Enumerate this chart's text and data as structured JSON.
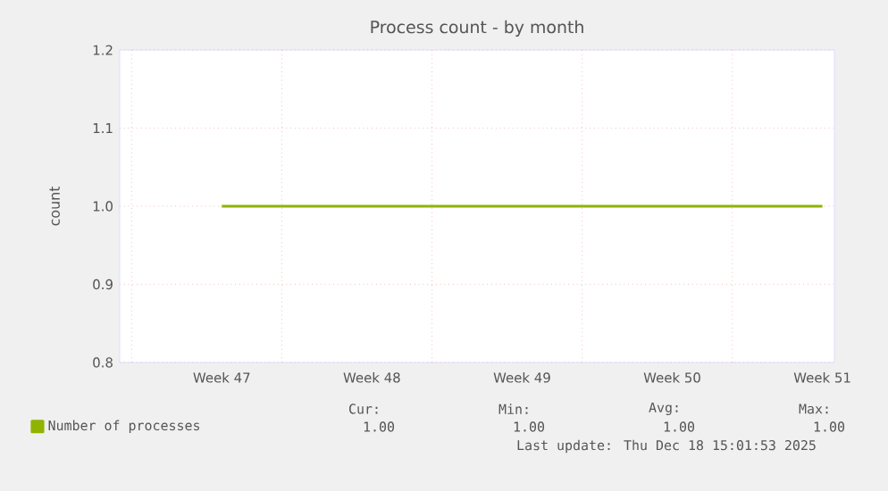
{
  "chart_data": {
    "type": "line",
    "title": "Process count - by month",
    "ylabel": "count",
    "categories": [
      "Week 47",
      "Week 48",
      "Week 49",
      "Week 50",
      "Week 51"
    ],
    "ylim": [
      0.8,
      1.2
    ],
    "yticks": [
      {
        "value": 0.8,
        "label": "0.8"
      },
      {
        "value": 0.9,
        "label": "0.9"
      },
      {
        "value": 1.0,
        "label": "1.0"
      },
      {
        "value": 1.1,
        "label": "1.1"
      },
      {
        "value": 1.2,
        "label": "1.2"
      }
    ],
    "grid": true,
    "legend": "bottom",
    "series": [
      {
        "name": "Number of processes",
        "color": "#8fb300",
        "values": [
          1.0,
          1.0,
          1.0,
          1.0,
          1.0
        ]
      }
    ],
    "annotations": [
      "Cur:",
      "Min:",
      "Avg:",
      "Max:",
      "1.00",
      "1.00",
      "1.00",
      "1.00",
      "Last update: Thu Dec 18 15:01:53 2025"
    ]
  }
}
